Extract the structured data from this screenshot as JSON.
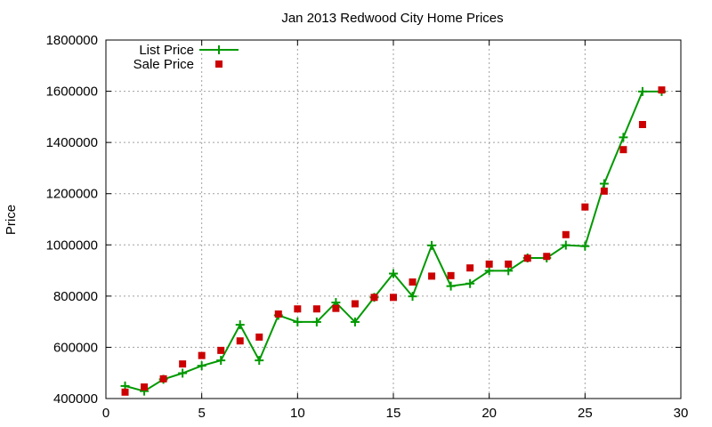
{
  "chart_data": {
    "type": "line",
    "title": "Jan 2013 Redwood City Home Prices",
    "xlabel": "",
    "ylabel": "Price",
    "xlim": [
      0,
      30
    ],
    "ylim": [
      400000,
      1800000
    ],
    "xticks": [
      0,
      5,
      10,
      15,
      20,
      25,
      30
    ],
    "yticks": [
      400000,
      600000,
      800000,
      1000000,
      1200000,
      1400000,
      1600000,
      1800000
    ],
    "grid": true,
    "legend": "top-left",
    "series": [
      {
        "name": "List Price",
        "kind": "line-plus",
        "color": "#009900",
        "x": [
          1,
          2,
          3,
          4,
          5,
          6,
          7,
          8,
          9,
          10,
          11,
          12,
          13,
          14,
          15,
          16,
          17,
          18,
          19,
          20,
          21,
          22,
          23,
          24,
          25,
          26,
          27,
          28,
          29
        ],
        "y": [
          449000,
          429000,
          475000,
          499000,
          528000,
          549000,
          688000,
          549000,
          725000,
          699000,
          699000,
          775000,
          699000,
          795000,
          888000,
          799000,
          998000,
          839000,
          849000,
          899000,
          899000,
          949000,
          949000,
          999000,
          995000,
          1239000,
          1420000,
          1599000,
          1599000
        ]
      },
      {
        "name": "Sale Price",
        "kind": "scatter-square",
        "color": "#cc0000",
        "x": [
          1,
          2,
          3,
          4,
          5,
          6,
          7,
          8,
          9,
          10,
          11,
          12,
          13,
          14,
          15,
          16,
          17,
          18,
          19,
          20,
          21,
          22,
          23,
          24,
          25,
          26,
          27,
          28,
          29
        ],
        "y": [
          425000,
          445000,
          477000,
          535000,
          568000,
          588000,
          625000,
          640000,
          730000,
          750000,
          750000,
          752000,
          770000,
          795000,
          795000,
          855000,
          878000,
          880000,
          910000,
          925000,
          925000,
          948000,
          955000,
          1040000,
          1148000,
          1210000,
          1372000,
          1470000,
          1605000
        ]
      }
    ]
  }
}
